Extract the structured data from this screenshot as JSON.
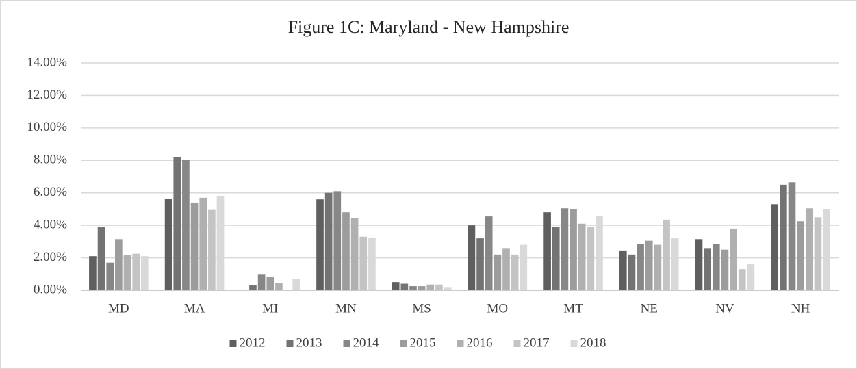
{
  "chart_data": {
    "type": "bar",
    "title": "Figure 1C: Maryland - New Hampshire",
    "categories": [
      "MD",
      "MA",
      "MI",
      "MN",
      "MS",
      "MO",
      "MT",
      "NE",
      "NV",
      "NH"
    ],
    "series": [
      {
        "name": "2012",
        "color": "#5f5f5f",
        "values": [
          2.1,
          5.65,
          0,
          5.6,
          0.5,
          4.0,
          4.8,
          2.45,
          3.15,
          5.3
        ]
      },
      {
        "name": "2013",
        "color": "#737373",
        "values": [
          3.9,
          8.2,
          0.3,
          6.0,
          0.4,
          3.2,
          3.9,
          2.2,
          2.6,
          6.5
        ]
      },
      {
        "name": "2014",
        "color": "#878787",
        "values": [
          1.7,
          8.05,
          1.0,
          6.1,
          0.25,
          4.55,
          5.05,
          2.85,
          2.85,
          6.65
        ]
      },
      {
        "name": "2015",
        "color": "#9c9c9c",
        "values": [
          3.15,
          5.4,
          0.8,
          4.8,
          0.25,
          2.2,
          5.0,
          3.05,
          2.5,
          4.25
        ]
      },
      {
        "name": "2016",
        "color": "#b0b0b0",
        "values": [
          2.15,
          5.7,
          0.45,
          4.45,
          0.35,
          2.6,
          4.1,
          2.8,
          3.8,
          5.05
        ]
      },
      {
        "name": "2017",
        "color": "#c4c4c4",
        "values": [
          2.25,
          4.95,
          0,
          3.3,
          0.35,
          2.2,
          3.9,
          4.35,
          1.3,
          4.5
        ]
      },
      {
        "name": "2018",
        "color": "#d9d9d9",
        "values": [
          2.1,
          5.8,
          0.7,
          3.25,
          0.2,
          2.8,
          4.55,
          3.2,
          1.6,
          5.0
        ]
      }
    ],
    "ylim": [
      0,
      14
    ],
    "yticks": [
      {
        "value": 0,
        "label": "0.00%"
      },
      {
        "value": 2,
        "label": "2.00%"
      },
      {
        "value": 4,
        "label": "4.00%"
      },
      {
        "value": 6,
        "label": "6.00%"
      },
      {
        "value": 8,
        "label": "8.00%"
      },
      {
        "value": 10,
        "label": "10.00%"
      },
      {
        "value": 12,
        "label": "12.00%"
      },
      {
        "value": 14,
        "label": "14.00%"
      }
    ],
    "grid": true,
    "legend": "bottom"
  }
}
